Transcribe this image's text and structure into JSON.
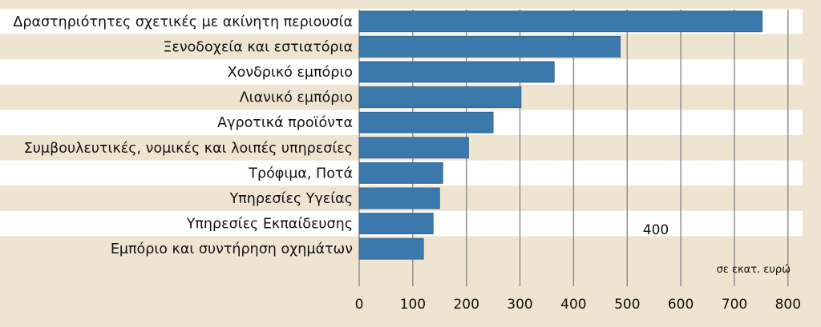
{
  "colors": {
    "background": "#efe4d0",
    "row_stripe": "#ffffff",
    "bar": "#3b79ad",
    "bar_edge": "#2d5f8a",
    "gridline": "#8a8a8a",
    "text": "#111111"
  },
  "chart_data": {
    "type": "bar",
    "orientation": "horizontal",
    "categories": [
      "Δραστηριότητες σχετικές με ακίνητη περιουσία",
      "Ξενοδοχεία και εστιατόρια",
      "Χονδρικό εμπόριο",
      "Λιανικό εμπόριο",
      "Αγροτικά προϊόντα",
      "Συμβουλευτικές, νομικές και λοιπές υπηρεσίες",
      "Τρόφιμα, Ποτά",
      "Υπηρεσίες Υγείας",
      "Υπηρεσίες Εκπαίδευσης",
      "Εμπόριο και συντήρηση οχημάτων"
    ],
    "values": [
      752,
      487,
      364,
      302,
      250,
      204,
      156,
      150,
      138,
      120
    ],
    "xlim": [
      0,
      800
    ],
    "xticks": [
      "0",
      "100",
      "200",
      "300",
      "400",
      "500",
      "600",
      "700",
      "800"
    ],
    "unit_label": "σε εκατ. ευρώ",
    "annotation": "400",
    "grid": true
  }
}
